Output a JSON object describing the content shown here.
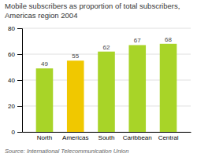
{
  "chart_data": {
    "type": "bar",
    "title": "Mobile subscribers as proportion of total subscribers, Americas region 2004",
    "source": "Source: International Telecommunication Union",
    "categories": [
      "North",
      "Americas",
      "South",
      "Caribbean",
      "Central"
    ],
    "values": [
      49,
      55,
      62,
      67,
      68
    ],
    "colors": [
      "#a8d428",
      "#f0c800",
      "#a8d428",
      "#a8d428",
      "#a8d428"
    ],
    "ylim": [
      0,
      80
    ],
    "yticks": [
      0,
      20,
      40,
      60,
      80
    ],
    "grid": true,
    "data_labels": true
  }
}
